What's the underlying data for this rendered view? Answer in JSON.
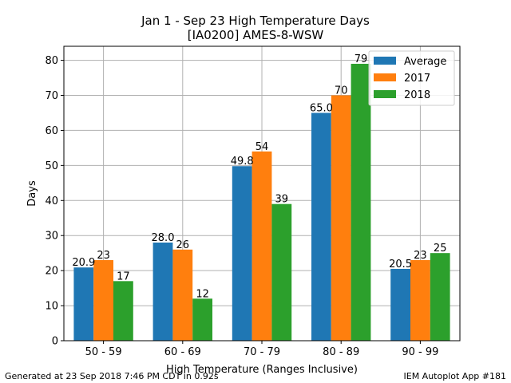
{
  "chart_data": {
    "type": "bar",
    "title": "Jan 1 - Sep 23 High Temperature Days",
    "subtitle": "[IA0200] AMES-8-WSW",
    "xlabel": "High Temperature (Ranges Inclusive)",
    "ylabel": "Days",
    "ylim": [
      0,
      84
    ],
    "yticks": [
      0,
      10,
      20,
      30,
      40,
      50,
      60,
      70,
      80
    ],
    "grid": true,
    "legend_position": "top-right",
    "categories": [
      "50 - 59",
      "60 - 69",
      "70 - 79",
      "80 - 89",
      "90 - 99"
    ],
    "series": [
      {
        "name": "Average",
        "color": "#1f77b4",
        "values": [
          20.9,
          28.0,
          49.8,
          65.0,
          20.5
        ],
        "labels": [
          "20.9",
          "28.0",
          "49.8",
          "65.0",
          "20.5"
        ]
      },
      {
        "name": "2017",
        "color": "#ff7f0e",
        "values": [
          23,
          26,
          54,
          70,
          23
        ],
        "labels": [
          "23",
          "26",
          "54",
          "70",
          "23"
        ]
      },
      {
        "name": "2018",
        "color": "#2ca02c",
        "values": [
          17,
          12,
          39,
          79,
          25
        ],
        "labels": [
          "17",
          "12",
          "39",
          "79",
          "25"
        ]
      }
    ]
  },
  "footer": {
    "left": "Generated at 23 Sep 2018 7:46 PM CDT in 0.92s",
    "right": "IEM Autoplot App #181"
  }
}
